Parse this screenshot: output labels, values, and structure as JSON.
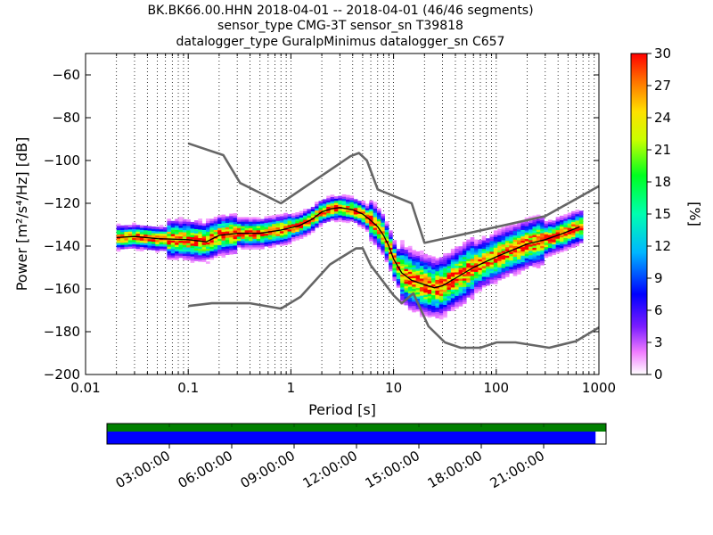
{
  "chart_data": {
    "type": "heatmap",
    "title_lines": [
      "BK.BK66.00.HHN   2018-04-01 -- 2018-04-01  (46/46 segments)",
      "sensor_type CMG-3T sensor_sn T39818",
      "datalogger_type GuralpMinimus datalogger_sn C657"
    ],
    "xlabel": "Period [s]",
    "ylabel": "Power [m²/s⁴/Hz] [dB]",
    "xscale": "log",
    "xlim": [
      0.01,
      1000
    ],
    "ylim": [
      -200,
      -50
    ],
    "x_ticks": [
      {
        "value": 0.01,
        "label": "0.01"
      },
      {
        "value": 0.1,
        "label": "0.1"
      },
      {
        "value": 1,
        "label": "1"
      },
      {
        "value": 10,
        "label": "10"
      },
      {
        "value": 100,
        "label": "100"
      },
      {
        "value": 1000,
        "label": "1000"
      }
    ],
    "y_ticks": [
      {
        "value": -60,
        "label": "−60"
      },
      {
        "value": -80,
        "label": "−80"
      },
      {
        "value": -100,
        "label": "−100"
      },
      {
        "value": -120,
        "label": "−120"
      },
      {
        "value": -140,
        "label": "−140"
      },
      {
        "value": -160,
        "label": "−160"
      },
      {
        "value": -180,
        "label": "−180"
      },
      {
        "value": -200,
        "label": "−200"
      }
    ],
    "grid": "dotted vertical",
    "colorbar": {
      "label": "[%]",
      "range": [
        0,
        30
      ],
      "ticks": [
        "0",
        "3",
        "6",
        "9",
        "12",
        "15",
        "18",
        "21",
        "24",
        "27",
        "30"
      ]
    },
    "nhnm": [
      [
        0.1,
        -92
      ],
      [
        0.22,
        -97.5
      ],
      [
        0.32,
        -110.5
      ],
      [
        0.8,
        -120
      ],
      [
        3.8,
        -98
      ],
      [
        4.6,
        -96.5
      ],
      [
        5.5,
        -100
      ],
      [
        7,
        -113.5
      ],
      [
        15,
        -120
      ],
      [
        20,
        -138.5
      ],
      [
        300,
        -126
      ],
      [
        1000,
        -112
      ]
    ],
    "nlnm": [
      [
        0.1,
        -168
      ],
      [
        0.17,
        -166.7
      ],
      [
        0.4,
        -166.7
      ],
      [
        0.8,
        -169.2
      ],
      [
        1.24,
        -163.7
      ],
      [
        2.4,
        -148.6
      ],
      [
        4.3,
        -141.1
      ],
      [
        5,
        -141
      ],
      [
        6,
        -149
      ],
      [
        10,
        -163
      ],
      [
        12,
        -166.7
      ],
      [
        15.6,
        -162.1
      ],
      [
        21.9,
        -177.5
      ],
      [
        31.6,
        -185
      ],
      [
        45,
        -187.5
      ],
      [
        70,
        -187.5
      ],
      [
        101,
        -185
      ],
      [
        154,
        -185
      ],
      [
        328,
        -187.5
      ],
      [
        600,
        -184.4
      ],
      [
        1000,
        -178
      ]
    ],
    "median": [
      [
        0.02,
        -136
      ],
      [
        0.03,
        -135.5
      ],
      [
        0.05,
        -136.5
      ],
      [
        0.1,
        -137
      ],
      [
        0.15,
        -138
      ],
      [
        0.2,
        -135
      ],
      [
        0.3,
        -134
      ],
      [
        0.5,
        -134
      ],
      [
        0.8,
        -132.5
      ],
      [
        1.2,
        -130.5
      ],
      [
        1.6,
        -127.5
      ],
      [
        2,
        -124
      ],
      [
        2.5,
        -122.5
      ],
      [
        3,
        -122
      ],
      [
        4,
        -123
      ],
      [
        5,
        -125
      ],
      [
        6,
        -128
      ],
      [
        7,
        -131
      ],
      [
        8,
        -135
      ],
      [
        9,
        -140
      ],
      [
        10,
        -146
      ],
      [
        12,
        -152.5
      ],
      [
        15,
        -156
      ],
      [
        20,
        -158
      ],
      [
        25,
        -159.5
      ],
      [
        30,
        -158.5
      ],
      [
        40,
        -155
      ],
      [
        60,
        -150
      ],
      [
        100,
        -145
      ],
      [
        150,
        -141.5
      ],
      [
        200,
        -139
      ],
      [
        300,
        -137
      ],
      [
        450,
        -134
      ],
      [
        650,
        -131
      ]
    ],
    "density_percent_range": [
      0,
      30
    ],
    "availability_bar": {
      "time_ticks": [
        "03:00:00",
        "06:00:00",
        "09:00:00",
        "12:00:00",
        "15:00:00",
        "18:00:00",
        "21:00:00"
      ],
      "time_fraction_ticks": [
        0.125,
        0.25,
        0.375,
        0.5,
        0.625,
        0.75,
        0.875
      ],
      "data_coverage": 1.0,
      "gap_coverage": 0.979,
      "data_color": "#008000",
      "gap_color": "#0000ff"
    }
  }
}
